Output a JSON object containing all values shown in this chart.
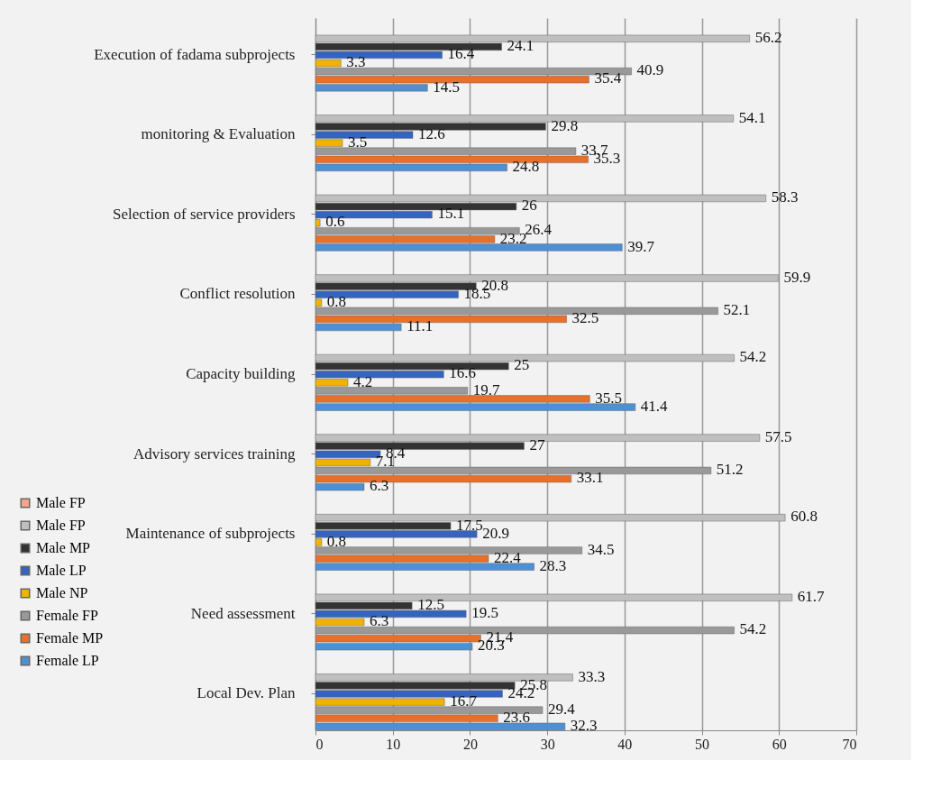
{
  "chart_data": {
    "type": "bar",
    "orientation": "horizontal",
    "categories": [
      "Execution of fadama subprojects",
      "monitoring & Evaluation",
      "Selection of service providers",
      "Conflict resolution",
      "Capacity building",
      "Advisory services training",
      "Maintenance of subprojects",
      "Need assessment",
      "Local Dev. Plan"
    ],
    "series": [
      {
        "name": "Male FP",
        "color": "#f4a58a",
        "values": [
          null,
          null,
          null,
          null,
          null,
          null,
          null,
          null,
          null
        ]
      },
      {
        "name": "Male FP",
        "color": "#bfbfbf",
        "values": [
          56.2,
          54.1,
          58.3,
          59.9,
          54.2,
          57.5,
          60.8,
          61.7,
          33.3
        ]
      },
      {
        "name": "Male MP",
        "color": "#333333",
        "values": [
          24.1,
          29.8,
          26,
          20.8,
          25,
          27,
          17.5,
          12.5,
          25.8
        ]
      },
      {
        "name": "Male LP",
        "color": "#3464c0",
        "values": [
          16.4,
          12.6,
          15.1,
          18.5,
          16.6,
          8.4,
          20.9,
          19.5,
          24.2
        ]
      },
      {
        "name": "Male NP",
        "color": "#efb300",
        "values": [
          3.3,
          3.5,
          0.6,
          0.8,
          4.2,
          7.1,
          0.8,
          6.3,
          16.7
        ]
      },
      {
        "name": "Female FP",
        "color": "#999999",
        "values": [
          40.9,
          33.7,
          26.4,
          52.1,
          19.7,
          51.2,
          34.5,
          54.2,
          29.4
        ]
      },
      {
        "name": "Female MP",
        "color": "#e8702a",
        "values": [
          35.4,
          35.3,
          23.2,
          32.5,
          35.5,
          33.1,
          22.4,
          21.4,
          23.6
        ]
      },
      {
        "name": "Female LP",
        "color": "#4f90d4",
        "values": [
          14.5,
          24.8,
          39.7,
          11.1,
          41.4,
          6.3,
          28.3,
          20.3,
          32.3
        ]
      }
    ],
    "xlim": [
      0,
      70
    ],
    "xticks": [
      0,
      10,
      20,
      30,
      40,
      50,
      60,
      70
    ],
    "grid": "x",
    "legend": "bottom left",
    "data_labels": true
  }
}
